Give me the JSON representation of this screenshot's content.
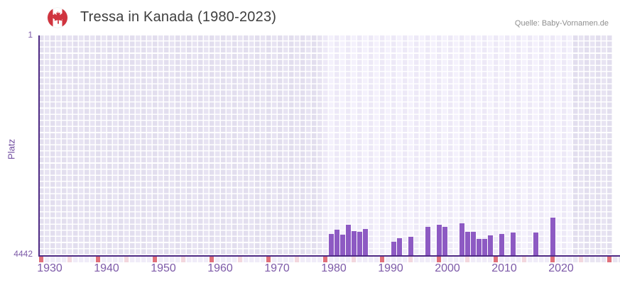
{
  "header": {
    "flag_icon": "canada-flag-icon",
    "title": "Tressa in Kanada (1980-2023)",
    "source": "Quelle: Baby-Vornamen.de"
  },
  "colors": {
    "bar": "#8d5ac3",
    "axis_line": "#4e2a84",
    "tick_label": "#7d5aa8",
    "y_axis_title": "#6f4b9f",
    "title_text": "#3e3e3e",
    "source_text": "#8f8f8f",
    "cell_dark_a": "#e2deee",
    "cell_dark_b": "#e7e3f2",
    "cell_light_a": "#ede9f7",
    "cell_light_b": "#f4f1fc",
    "grid_line": "#ffffff",
    "decade_mark": "#e0707a",
    "half_decade_mark": "#f3d7de",
    "bottom_row_light": "#f0ecf8",
    "bottom_row_dark": "#e9e5f2",
    "flag_red": "#d0343f",
    "flag_white": "#ffffff"
  },
  "chart_data": {
    "type": "bar",
    "title": "Tressa in Kanada (1980-2023)",
    "source_annotation": "Quelle: Baby-Vornamen.de",
    "xlabel": "",
    "ylabel": "Platz",
    "y_axis": {
      "top_label": "1",
      "bottom_label": "4442",
      "min": 1,
      "max": 4442,
      "inverted": true,
      "note": "rank 1 at top, bars rise from rank 4442 baseline"
    },
    "x_axis": {
      "start_year": 1930,
      "end_year": 2030,
      "tick_labels": [
        "1930",
        "1940",
        "1950",
        "1960",
        "1970",
        "1980",
        "1990",
        "2000",
        "2010",
        "2020"
      ],
      "decade_mark_years": [
        1930,
        1940,
        1950,
        1960,
        1970,
        1980,
        1990,
        2000,
        2010,
        2020,
        2030
      ],
      "half_decade_mark_years": [
        1935,
        1945,
        1955,
        1965,
        1975,
        1985,
        1995,
        2005,
        2015,
        2025
      ],
      "highlight_range": [
        1980,
        2023
      ],
      "grid": true
    },
    "series": [
      {
        "name": "Platz",
        "points": [
          {
            "year": 1981,
            "platz": 4010
          },
          {
            "year": 1982,
            "platz": 3925
          },
          {
            "year": 1983,
            "platz": 4025
          },
          {
            "year": 1984,
            "platz": 3825
          },
          {
            "year": 1985,
            "platz": 3955
          },
          {
            "year": 1986,
            "platz": 3970
          },
          {
            "year": 1987,
            "platz": 3910
          },
          {
            "year": 1992,
            "platz": 4170
          },
          {
            "year": 1993,
            "platz": 4100
          },
          {
            "year": 1995,
            "platz": 4070
          },
          {
            "year": 1998,
            "platz": 3870
          },
          {
            "year": 2000,
            "platz": 3825
          },
          {
            "year": 2001,
            "platz": 3870
          },
          {
            "year": 2004,
            "platz": 3795
          },
          {
            "year": 2005,
            "platz": 3970
          },
          {
            "year": 2006,
            "platz": 3970
          },
          {
            "year": 2007,
            "platz": 4115
          },
          {
            "year": 2008,
            "platz": 4115
          },
          {
            "year": 2009,
            "platz": 4040
          },
          {
            "year": 2011,
            "platz": 4010
          },
          {
            "year": 2013,
            "platz": 3985
          },
          {
            "year": 2017,
            "platz": 3985
          },
          {
            "year": 2020,
            "platz": 3685
          }
        ]
      }
    ]
  }
}
